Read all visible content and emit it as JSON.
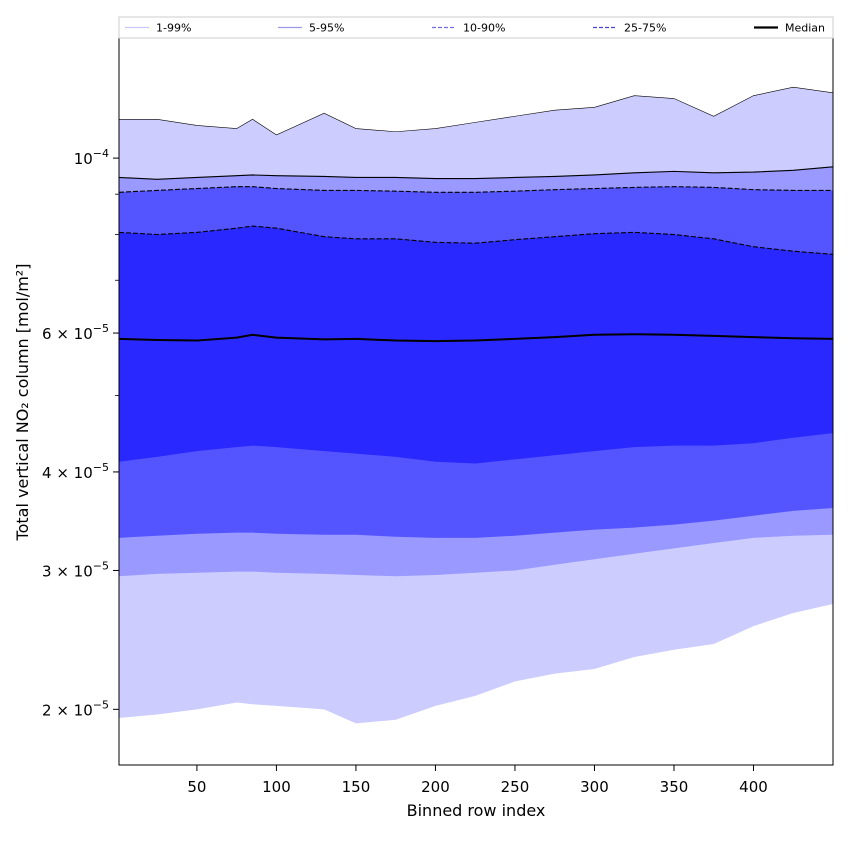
{
  "chart_data": {
    "type": "area",
    "xlabel": "Binned row index",
    "ylabel": "Total vertical NO₂ column [mol/m²]",
    "y_scale": "log",
    "xlim": [
      1,
      450
    ],
    "ylim": [
      1.7e-05,
      0.000142
    ],
    "x_ticks": [
      50,
      100,
      150,
      200,
      250,
      300,
      350,
      400
    ],
    "x_tick_labels": [
      "50",
      "100",
      "150",
      "200",
      "250",
      "300",
      "350",
      "400"
    ],
    "y_ticks": [
      {
        "value": 2e-05,
        "mantissa": "2 × 10",
        "exp": "−5"
      },
      {
        "value": 3e-05,
        "mantissa": "3 × 10",
        "exp": "−5"
      },
      {
        "value": 4e-05,
        "mantissa": "4 × 10",
        "exp": "−5"
      },
      {
        "value": 6e-05,
        "mantissa": "6 × 10",
        "exp": "−5"
      },
      {
        "value": 0.0001,
        "mantissa": "10",
        "exp": "−4"
      }
    ],
    "y_minor_ticks": [
      5e-05,
      7e-05,
      8e-05,
      9e-05
    ],
    "legend": {
      "placement": "top, full width",
      "entries": [
        {
          "label": "1-99%",
          "style": "solid",
          "color": "#c8c8f8"
        },
        {
          "label": "5-95%",
          "style": "solid",
          "color": "#9a9ae8"
        },
        {
          "label": "10-90%",
          "style": "dashed",
          "color": "#7070e0"
        },
        {
          "label": "25-75%",
          "style": "dashed",
          "color": "#4646d8"
        },
        {
          "label": "Median",
          "style": "solid",
          "color": "#000000"
        }
      ]
    },
    "x": [
      1,
      25,
      50,
      75,
      85,
      100,
      130,
      150,
      175,
      200,
      225,
      250,
      275,
      300,
      325,
      350,
      375,
      400,
      425,
      450
    ],
    "bands": [
      {
        "name": "1-99%",
        "color": "#ccccff",
        "lower": [
          1.95e-05,
          1.97e-05,
          2e-05,
          2.04e-05,
          2.03e-05,
          2.02e-05,
          2e-05,
          1.92e-05,
          1.94e-05,
          2.02e-05,
          2.08e-05,
          2.17e-05,
          2.22e-05,
          2.25e-05,
          2.33e-05,
          2.38e-05,
          2.42e-05,
          2.55e-05,
          2.65e-05,
          2.72e-05
        ],
        "upper": [
          0.000112,
          0.000112,
          0.00011,
          0.000109,
          0.000112,
          0.000107,
          0.000114,
          0.000109,
          0.000108,
          0.000109,
          0.000111,
          0.000113,
          0.000115,
          0.000116,
          0.00012,
          0.000119,
          0.000113,
          0.00012,
          0.000123,
          0.000121
        ]
      },
      {
        "name": "5-95%",
        "color": "#9999ff",
        "lower": [
          2.95e-05,
          2.97e-05,
          2.98e-05,
          2.99e-05,
          2.99e-05,
          2.98e-05,
          2.97e-05,
          2.96e-05,
          2.95e-05,
          2.96e-05,
          2.98e-05,
          3e-05,
          3.05e-05,
          3.1e-05,
          3.15e-05,
          3.2e-05,
          3.25e-05,
          3.3e-05,
          3.32e-05,
          3.33e-05
        ],
        "upper": [
          9.45e-05,
          9.4e-05,
          9.45e-05,
          9.5e-05,
          9.52e-05,
          9.5e-05,
          9.48e-05,
          9.45e-05,
          9.45e-05,
          9.42e-05,
          9.42e-05,
          9.45e-05,
          9.48e-05,
          9.52e-05,
          9.58e-05,
          9.62e-05,
          9.58e-05,
          9.6e-05,
          9.65e-05,
          9.75e-05
        ]
      },
      {
        "name": "10-90%",
        "color": "#5555ff",
        "lower": [
          3.3e-05,
          3.32e-05,
          3.34e-05,
          3.35e-05,
          3.35e-05,
          3.34e-05,
          3.33e-05,
          3.33e-05,
          3.31e-05,
          3.3e-05,
          3.3e-05,
          3.32e-05,
          3.35e-05,
          3.38e-05,
          3.4e-05,
          3.43e-05,
          3.47e-05,
          3.52e-05,
          3.57e-05,
          3.6e-05
        ],
        "upper": [
          9.05e-05,
          9.1e-05,
          9.15e-05,
          9.2e-05,
          9.2e-05,
          9.15e-05,
          9.1e-05,
          9.1e-05,
          9.08e-05,
          9.05e-05,
          9.05e-05,
          9.08e-05,
          9.12e-05,
          9.15e-05,
          9.18e-05,
          9.2e-05,
          9.18e-05,
          9.12e-05,
          9.1e-05,
          9.1e-05
        ]
      },
      {
        "name": "25-75%",
        "color": "#2929ff",
        "lower": [
          4.12e-05,
          4.18e-05,
          4.25e-05,
          4.3e-05,
          4.32e-05,
          4.3e-05,
          4.25e-05,
          4.22e-05,
          4.18e-05,
          4.12e-05,
          4.1e-05,
          4.15e-05,
          4.2e-05,
          4.25e-05,
          4.3e-05,
          4.32e-05,
          4.32e-05,
          4.35e-05,
          4.42e-05,
          4.48e-05
        ],
        "upper": [
          8.05e-05,
          8e-05,
          8.05e-05,
          8.15e-05,
          8.2e-05,
          8.15e-05,
          7.95e-05,
          7.9e-05,
          7.9e-05,
          7.82e-05,
          7.8e-05,
          7.88e-05,
          7.95e-05,
          8.02e-05,
          8.05e-05,
          8e-05,
          7.9e-05,
          7.72e-05,
          7.62e-05,
          7.55e-05
        ]
      }
    ],
    "median": {
      "name": "Median",
      "color": "#000000",
      "values": [
        5.9e-05,
        5.88e-05,
        5.87e-05,
        5.92e-05,
        5.97e-05,
        5.92e-05,
        5.89e-05,
        5.9e-05,
        5.87e-05,
        5.86e-05,
        5.87e-05,
        5.9e-05,
        5.93e-05,
        5.97e-05,
        5.98e-05,
        5.97e-05,
        5.95e-05,
        5.93e-05,
        5.91e-05,
        5.9e-05
      ]
    }
  }
}
